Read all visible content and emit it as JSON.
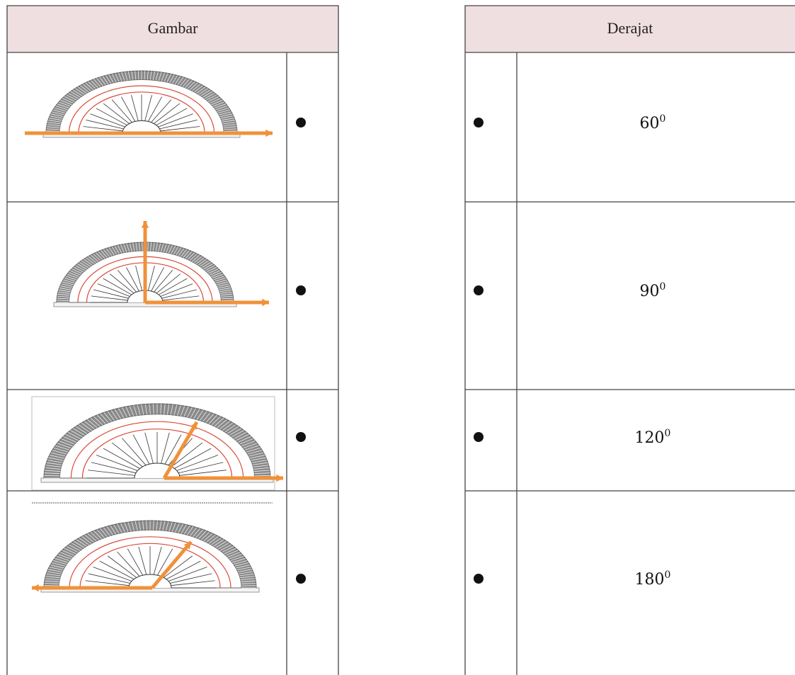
{
  "left_table": {
    "header": "Gambar"
  },
  "right_table": {
    "header": "Derajat",
    "rows": [
      {
        "value": "60",
        "exponent": "0"
      },
      {
        "value": "90",
        "exponent": "0"
      },
      {
        "value": "120",
        "exponent": "0"
      },
      {
        "value": "180",
        "exponent": "0"
      }
    ]
  }
}
